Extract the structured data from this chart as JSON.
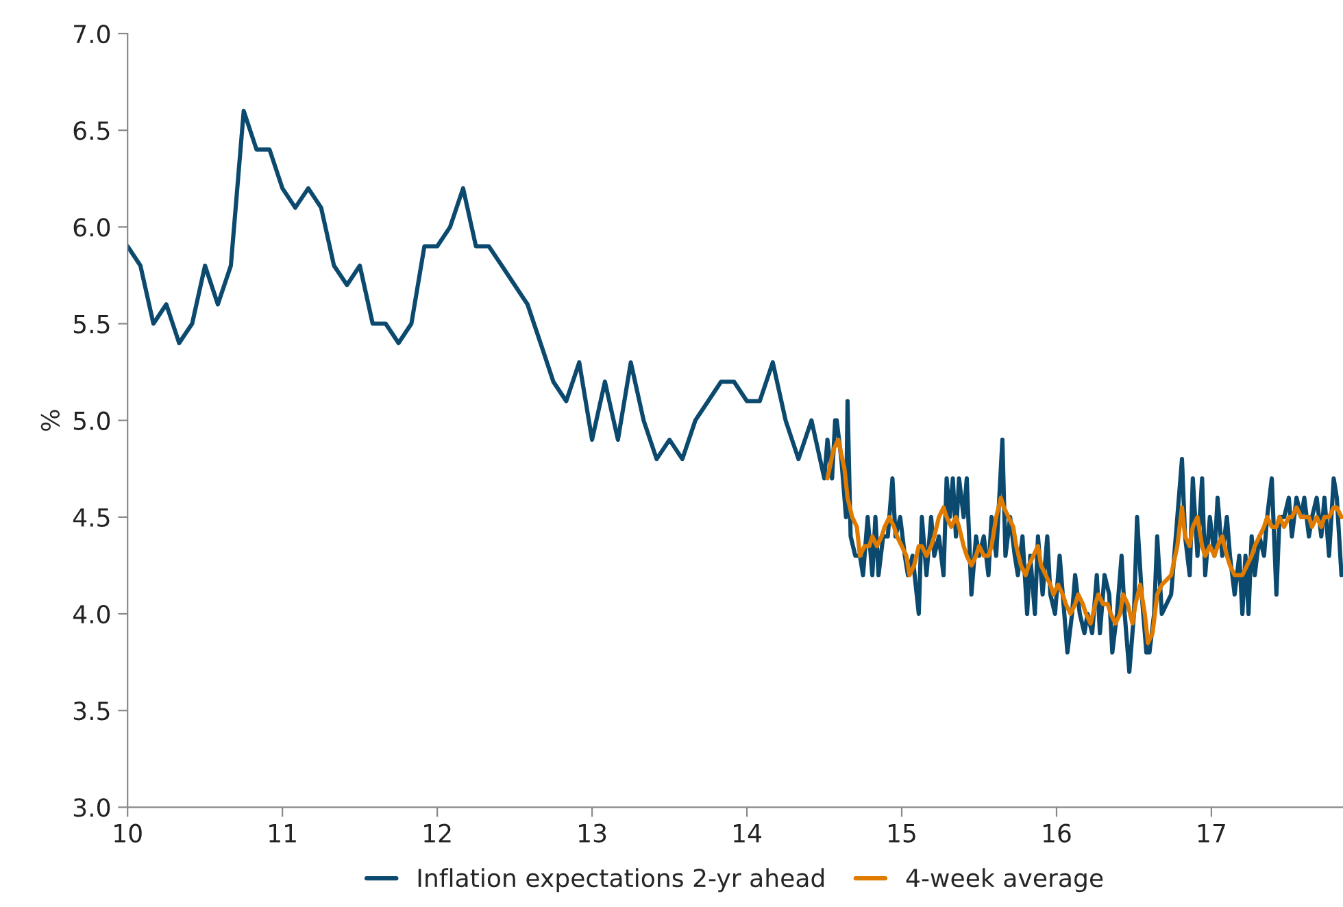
{
  "chart_data": {
    "type": "line",
    "ylabel": "%",
    "xlim": [
      10,
      17.85
    ],
    "ylim": [
      3.0,
      7.0
    ],
    "xticks": [
      10,
      11,
      12,
      13,
      14,
      15,
      16,
      17
    ],
    "yticks": [
      {
        "value": 3.0,
        "label": "3.0"
      },
      {
        "value": 3.5,
        "label": "3.5"
      },
      {
        "value": 4.0,
        "label": "4.0"
      },
      {
        "value": 4.5,
        "label": "4.5"
      },
      {
        "value": 5.0,
        "label": "5.0"
      },
      {
        "value": 5.5,
        "label": "5.5"
      },
      {
        "value": 6.0,
        "label": "6.0"
      },
      {
        "value": 6.5,
        "label": "6.5"
      },
      {
        "value": 7.0,
        "label": "7.0"
      }
    ],
    "grid": false,
    "legend": "bottom",
    "marker": "none",
    "line_style": "solid",
    "series": [
      {
        "name": "Inflation expectations 2-yr ahead",
        "color": "#0b4a6e",
        "x": [
          10,
          10.083,
          10.167,
          10.25,
          10.333,
          10.417,
          10.5,
          10.583,
          10.667,
          10.75,
          10.833,
          10.917,
          11,
          11.083,
          11.167,
          11.25,
          11.333,
          11.417,
          11.5,
          11.583,
          11.667,
          11.75,
          11.833,
          11.917,
          12,
          12.083,
          12.167,
          12.25,
          12.333,
          12.417,
          12.5,
          12.583,
          12.667,
          12.75,
          12.833,
          12.917,
          13,
          13.083,
          13.167,
          13.25,
          13.333,
          13.417,
          13.5,
          13.583,
          13.667,
          13.75,
          13.833,
          13.917,
          14,
          14.083,
          14.167,
          14.25,
          14.333,
          14.417,
          14.5,
          14.52,
          14.55,
          14.57,
          14.58,
          14.61,
          14.64,
          14.65,
          14.67,
          14.7,
          14.73,
          14.75,
          14.78,
          14.81,
          14.83,
          14.85,
          14.88,
          14.91,
          14.94,
          14.96,
          14.99,
          15.02,
          15.04,
          15.07,
          15.11,
          15.13,
          15.16,
          15.19,
          15.21,
          15.24,
          15.27,
          15.29,
          15.31,
          15.33,
          15.35,
          15.37,
          15.4,
          15.42,
          15.45,
          15.48,
          15.5,
          15.53,
          15.56,
          15.58,
          15.61,
          15.65,
          15.67,
          15.7,
          15.73,
          15.75,
          15.78,
          15.81,
          15.83,
          15.86,
          15.88,
          15.91,
          15.94,
          15.96,
          15.99,
          16.02,
          16.04,
          16.07,
          16.1,
          16.12,
          16.15,
          16.18,
          16.2,
          16.23,
          16.26,
          16.28,
          16.31,
          16.34,
          16.36,
          16.39,
          16.42,
          16.44,
          16.47,
          16.5,
          16.52,
          16.55,
          16.58,
          16.6,
          16.63,
          16.65,
          16.68,
          16.74,
          16.78,
          16.81,
          16.83,
          16.86,
          16.88,
          16.91,
          16.94,
          16.96,
          16.99,
          17.02,
          17.04,
          17.07,
          17.1,
          17.12,
          17.15,
          17.18,
          17.2,
          17.22,
          17.24,
          17.26,
          17.28,
          17.31,
          17.34,
          17.36,
          17.39,
          17.42,
          17.44,
          17.47,
          17.5,
          17.52,
          17.55,
          17.58,
          17.6,
          17.63,
          17.65,
          17.68,
          17.71,
          17.73,
          17.76,
          17.79,
          17.81,
          17.84
        ],
        "values": [
          5.9,
          5.8,
          5.5,
          5.6,
          5.4,
          5.5,
          5.8,
          5.6,
          5.8,
          6.6,
          6.4,
          6.4,
          6.2,
          6.1,
          6.2,
          6.1,
          5.8,
          5.7,
          5.8,
          5.5,
          5.5,
          5.4,
          5.5,
          5.9,
          5.9,
          6.0,
          6.2,
          5.9,
          5.9,
          5.8,
          5.7,
          5.6,
          5.4,
          5.2,
          5.1,
          5.3,
          4.9,
          5.2,
          4.9,
          5.3,
          5.0,
          4.8,
          4.9,
          4.8,
          5.0,
          5.1,
          5.2,
          5.2,
          5.1,
          5.1,
          5.3,
          5.0,
          4.8,
          5.0,
          4.7,
          4.9,
          4.7,
          5.0,
          5.0,
          4.8,
          4.5,
          5.1,
          4.4,
          4.3,
          4.3,
          4.2,
          4.5,
          4.2,
          4.5,
          4.2,
          4.4,
          4.4,
          4.7,
          4.4,
          4.5,
          4.3,
          4.2,
          4.3,
          4.0,
          4.5,
          4.2,
          4.5,
          4.3,
          4.4,
          4.2,
          4.7,
          4.5,
          4.7,
          4.4,
          4.7,
          4.5,
          4.7,
          4.1,
          4.4,
          4.3,
          4.4,
          4.2,
          4.5,
          4.3,
          4.9,
          4.3,
          4.5,
          4.3,
          4.2,
          4.4,
          4.0,
          4.3,
          4.0,
          4.4,
          4.1,
          4.4,
          4.1,
          4.0,
          4.3,
          4.1,
          3.8,
          4.0,
          4.2,
          4.0,
          3.9,
          4.0,
          3.9,
          4.2,
          3.9,
          4.2,
          4.1,
          3.8,
          4.0,
          4.3,
          4.0,
          3.7,
          4.0,
          4.5,
          4.1,
          3.8,
          3.8,
          4.0,
          4.4,
          4.0,
          4.1,
          4.5,
          4.8,
          4.4,
          4.2,
          4.7,
          4.3,
          4.7,
          4.2,
          4.5,
          4.3,
          4.6,
          4.3,
          4.5,
          4.3,
          4.1,
          4.3,
          4.0,
          4.3,
          4.0,
          4.4,
          4.2,
          4.4,
          4.3,
          4.5,
          4.7,
          4.1,
          4.5,
          4.5,
          4.6,
          4.4,
          4.6,
          4.5,
          4.6,
          4.4,
          4.5,
          4.6,
          4.4,
          4.6,
          4.3,
          4.7,
          4.6,
          4.2
        ]
      },
      {
        "name": "4-week average",
        "color": "#e07b00",
        "x": [
          14.52,
          14.56,
          14.59,
          14.63,
          14.65,
          14.68,
          14.71,
          14.73,
          14.76,
          14.79,
          14.81,
          14.84,
          14.87,
          14.89,
          14.92,
          14.95,
          14.97,
          15.0,
          15.03,
          15.05,
          15.08,
          15.11,
          15.13,
          15.16,
          15.19,
          15.21,
          15.24,
          15.27,
          15.29,
          15.32,
          15.35,
          15.37,
          15.4,
          15.42,
          15.45,
          15.48,
          15.5,
          15.53,
          15.56,
          15.58,
          15.61,
          15.64,
          15.66,
          15.69,
          15.72,
          15.74,
          15.77,
          15.8,
          15.82,
          15.85,
          15.88,
          15.9,
          15.93,
          15.96,
          15.98,
          16.01,
          16.04,
          16.06,
          16.09,
          16.12,
          16.14,
          16.17,
          16.19,
          16.22,
          16.25,
          16.27,
          16.3,
          16.33,
          16.35,
          16.38,
          16.41,
          16.43,
          16.46,
          16.49,
          16.51,
          16.54,
          16.57,
          16.59,
          16.62,
          16.65,
          16.68,
          16.74,
          16.78,
          16.81,
          16.83,
          16.86,
          16.88,
          16.91,
          16.94,
          16.96,
          16.99,
          17.02,
          17.04,
          17.07,
          17.1,
          17.12,
          17.15,
          17.18,
          17.2,
          17.23,
          17.26,
          17.28,
          17.31,
          17.34,
          17.36,
          17.39,
          17.42,
          17.44,
          17.47,
          17.5,
          17.52,
          17.55,
          17.58,
          17.6,
          17.63,
          17.65,
          17.68,
          17.71,
          17.73,
          17.76,
          17.79,
          17.81,
          17.84
        ],
        "values": [
          4.7,
          4.85,
          4.9,
          4.75,
          4.6,
          4.5,
          4.45,
          4.3,
          4.35,
          4.35,
          4.4,
          4.35,
          4.4,
          4.45,
          4.5,
          4.45,
          4.4,
          4.35,
          4.3,
          4.2,
          4.25,
          4.35,
          4.35,
          4.3,
          4.35,
          4.4,
          4.5,
          4.55,
          4.5,
          4.45,
          4.5,
          4.45,
          4.35,
          4.3,
          4.25,
          4.3,
          4.35,
          4.3,
          4.3,
          4.35,
          4.5,
          4.6,
          4.55,
          4.5,
          4.45,
          4.35,
          4.25,
          4.2,
          4.25,
          4.3,
          4.35,
          4.25,
          4.2,
          4.15,
          4.1,
          4.15,
          4.1,
          4.05,
          4.0,
          4.05,
          4.1,
          4.05,
          4.0,
          3.95,
          4.05,
          4.1,
          4.05,
          4.05,
          4.0,
          3.95,
          4.0,
          4.1,
          4.05,
          3.95,
          4.05,
          4.15,
          4.0,
          3.85,
          3.9,
          4.1,
          4.15,
          4.2,
          4.35,
          4.55,
          4.4,
          4.35,
          4.45,
          4.5,
          4.35,
          4.3,
          4.35,
          4.3,
          4.35,
          4.4,
          4.3,
          4.25,
          4.2,
          4.2,
          4.2,
          4.25,
          4.3,
          4.35,
          4.4,
          4.45,
          4.5,
          4.45,
          4.45,
          4.5,
          4.45,
          4.5,
          4.5,
          4.55,
          4.5,
          4.5,
          4.5,
          4.45,
          4.5,
          4.45,
          4.5,
          4.5,
          4.55,
          4.55,
          4.5
        ]
      }
    ]
  }
}
